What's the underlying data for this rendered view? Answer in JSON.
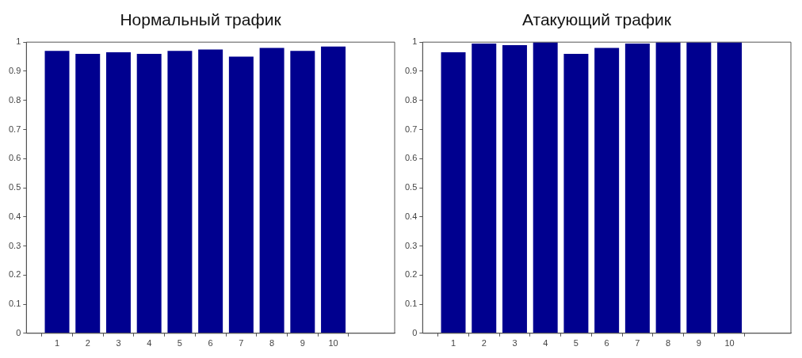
{
  "chart_data": [
    {
      "type": "bar",
      "title": "Нормальный трафик",
      "x": [
        1,
        2,
        3,
        4,
        5,
        6,
        7,
        8,
        9,
        10
      ],
      "values": [
        0.97,
        0.96,
        0.965,
        0.96,
        0.97,
        0.975,
        0.95,
        0.98,
        0.97,
        0.985
      ],
      "color": "#00008f",
      "xlim": [
        0,
        12
      ],
      "xticks": [
        1,
        2,
        3,
        4,
        5,
        6,
        7,
        8,
        9,
        10
      ],
      "ylim": [
        0,
        1
      ],
      "yticks": [
        0,
        0.1,
        0.2,
        0.3,
        0.4,
        0.5,
        0.6,
        0.7,
        0.8,
        0.9,
        1
      ],
      "grid": false,
      "legend": false
    },
    {
      "type": "bar",
      "title": "Атакующий трафик",
      "x": [
        1,
        2,
        3,
        4,
        5,
        6,
        7,
        8,
        9,
        10
      ],
      "values": [
        0.965,
        0.995,
        0.99,
        1,
        0.96,
        0.98,
        0.995,
        1,
        1,
        1
      ],
      "color": "#00008f",
      "xlim": [
        0,
        12
      ],
      "xticks": [
        1,
        2,
        3,
        4,
        5,
        6,
        7,
        8,
        9,
        10
      ],
      "ylim": [
        0,
        1
      ],
      "yticks": [
        0,
        0.1,
        0.2,
        0.3,
        0.4,
        0.5,
        0.6,
        0.7,
        0.8,
        0.9,
        1
      ],
      "grid": false,
      "legend": false
    }
  ]
}
